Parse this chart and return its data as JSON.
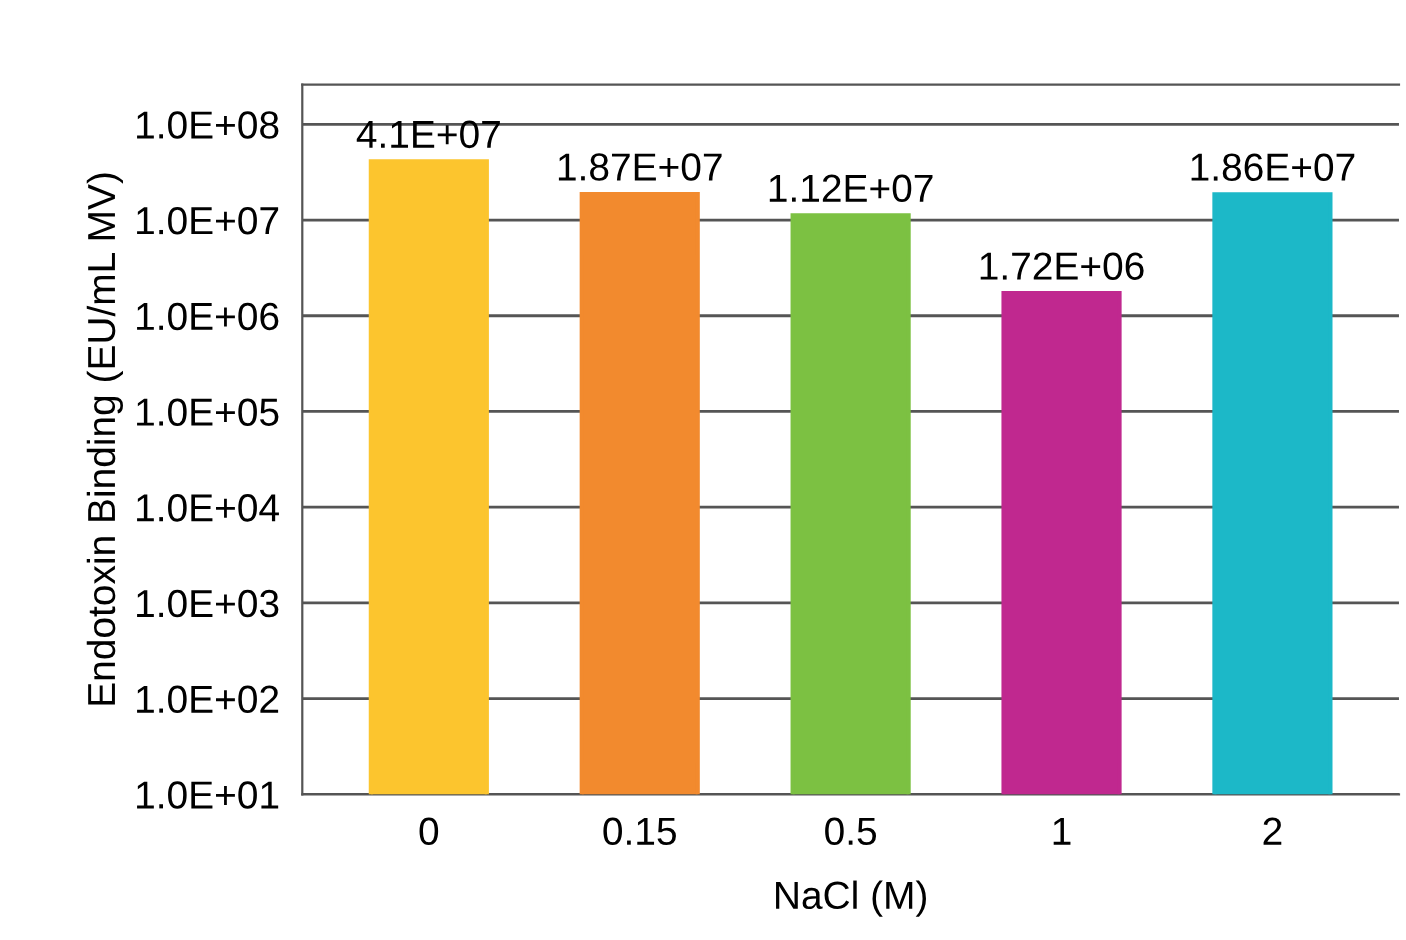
{
  "chart_data": {
    "type": "bar",
    "xlabel": "NaCl (M)",
    "ylabel": "Endotoxin Binding (EU/mL MV)",
    "categories": [
      "0",
      "0.15",
      "0.5",
      "1",
      "2"
    ],
    "values": [
      41000000,
      18700000,
      11200000,
      1720000,
      18600000
    ],
    "colors": [
      "#fcc52e",
      "#f28a2e",
      "#7cc142",
      "#c0288f",
      "#1cb8c8"
    ],
    "value_labels": [
      "4.1E+07",
      "1.87E+07",
      "1.12E+07",
      "1.72E+06",
      "1.86E+07"
    ],
    "log": "y",
    "ylim": [
      10,
      260000000
    ],
    "yticks": [
      {
        "value": 10,
        "label": "1.0E+01"
      },
      {
        "value": 100,
        "label": "1.0E+02"
      },
      {
        "value": 1000,
        "label": "1.0E+03"
      },
      {
        "value": 10000,
        "label": "1.0E+04"
      },
      {
        "value": 100000,
        "label": "1.0E+05"
      },
      {
        "value": 1000000,
        "label": "1.0E+06"
      },
      {
        "value": 10000000,
        "label": "1.0E+07"
      },
      {
        "value": 100000000,
        "label": "1.0E+08"
      }
    ],
    "grid": "y"
  }
}
